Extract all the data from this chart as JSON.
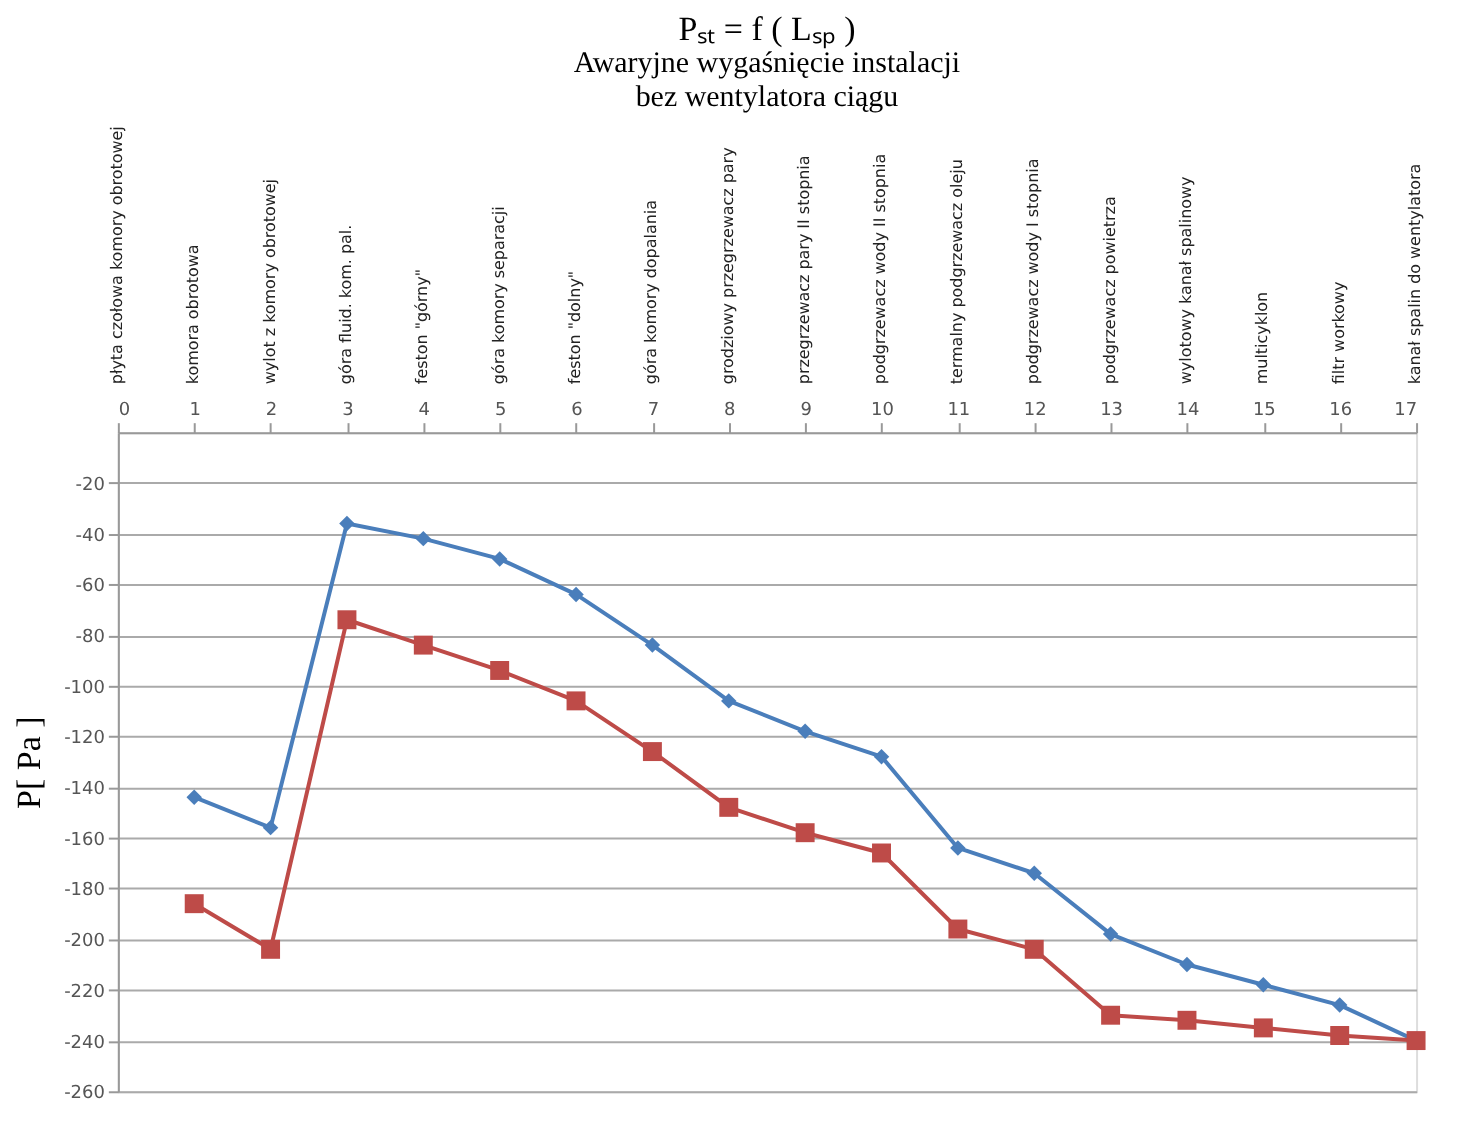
{
  "chart_data": {
    "type": "line",
    "title": "Pₛₜ = f ( Lₛₚ )",
    "subtitle": "Awaryjne wygaśnięcie instalacji\nbez wentylatora ciągu",
    "ylabel": "P[ Pa ]",
    "x": [
      1,
      2,
      3,
      4,
      5,
      6,
      7,
      8,
      9,
      10,
      11,
      12,
      13,
      14,
      15,
      16,
      17
    ],
    "series": [
      {
        "color": "#4a7ebb",
        "marker": "diamond",
        "values": [
          -144,
          -156,
          -36,
          -42,
          -50,
          -64,
          -84,
          -106,
          -118,
          -128,
          -164,
          -174,
          -198,
          -210,
          -218,
          -226,
          -240
        ]
      },
      {
        "color": "#be4b48",
        "marker": "square",
        "values": [
          -186,
          -204,
          -74,
          -84,
          -94,
          -106,
          -126,
          -148,
          -158,
          -166,
          -196,
          -204,
          -230,
          -232,
          -235,
          -238,
          -240
        ]
      }
    ],
    "annotations": [
      "płyta czołowa komory obrotowej",
      "komora obrotowa",
      "wylot z komory obrotowej",
      "góra fluid. kom. pal.",
      "feston \"górny\"",
      "góra komory separacji",
      "feston \"dolny\"",
      "góra komory dopalania",
      "grodziowy przegrzewacz pary",
      "przegrzewacz pary II stopnia",
      "podgrzewacz wody II stopnia",
      "termalny podgrzewacz oleju",
      "podgrzewacz wody I stopnia",
      "podgrzewacz powietrza",
      "wylotowy kanał spalinowy",
      "multicyklon",
      "filtr workowy",
      "kanał spalin do wentylatora"
    ],
    "xlim": [
      0,
      17
    ],
    "xticks": [
      0,
      1,
      2,
      3,
      4,
      5,
      6,
      7,
      8,
      9,
      10,
      11,
      12,
      13,
      14,
      15,
      16,
      17
    ],
    "ylim": [
      -260,
      0
    ],
    "yticks": [
      -260,
      -240,
      -220,
      -200,
      -180,
      -160,
      -140,
      -120,
      -100,
      -80,
      -60,
      -40,
      -20
    ],
    "grid": "y",
    "line_style": "solid"
  }
}
